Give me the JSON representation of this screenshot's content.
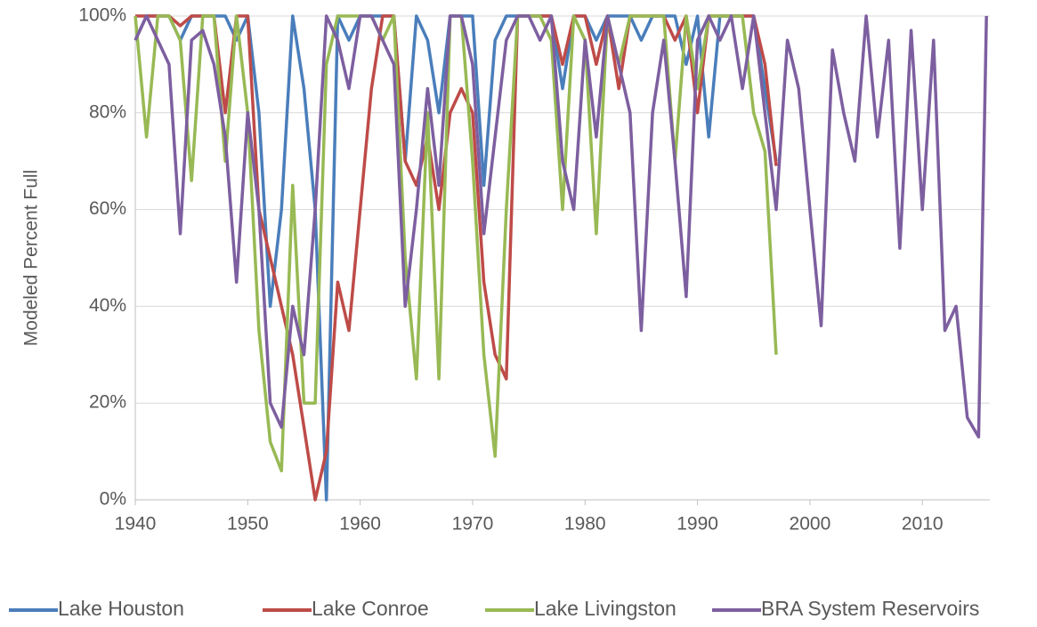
{
  "chart_data": {
    "type": "line",
    "y_label": "Modeled Percent Full",
    "x": [
      1940,
      1941,
      1942,
      1943,
      1944,
      1945,
      1946,
      1947,
      1948,
      1949,
      1950,
      1951,
      1952,
      1953,
      1954,
      1955,
      1956,
      1957,
      1958,
      1959,
      1960,
      1961,
      1962,
      1963,
      1964,
      1965,
      1966,
      1967,
      1968,
      1969,
      1970,
      1971,
      1972,
      1973,
      1974,
      1975,
      1976,
      1977,
      1978,
      1979,
      1980,
      1981,
      1982,
      1983,
      1984,
      1985,
      1986,
      1987,
      1988,
      1989,
      1990,
      1991,
      1992,
      1993,
      1994,
      1995,
      1996,
      1997,
      1998,
      1999,
      2000,
      2001,
      2002,
      2003,
      2004,
      2005,
      2006,
      2007,
      2008,
      2009,
      2010,
      2011,
      2012,
      2013,
      2014,
      2015,
      2015.7
    ],
    "series": [
      {
        "name": "Lake Houston",
        "color": "#4a7ebb",
        "values": [
          95,
          100,
          100,
          100,
          95,
          100,
          100,
          100,
          100,
          95,
          100,
          80,
          40,
          60,
          100,
          85,
          60,
          0,
          100,
          95,
          100,
          100,
          100,
          100,
          70,
          100,
          95,
          80,
          100,
          100,
          100,
          65,
          95,
          100,
          100,
          100,
          100,
          100,
          85,
          100,
          100,
          95,
          100,
          100,
          100,
          95,
          100,
          100,
          100,
          90,
          100,
          75,
          100,
          100,
          100,
          100,
          85,
          70,
          null,
          null,
          null,
          null,
          null,
          null,
          null,
          null,
          null,
          null,
          null,
          null,
          null,
          null,
          null,
          null,
          null,
          null,
          null
        ]
      },
      {
        "name": "Lake Conroe",
        "color": "#be4b48",
        "values": [
          100,
          100,
          100,
          100,
          98,
          100,
          100,
          100,
          80,
          100,
          100,
          60,
          50,
          40,
          30,
          15,
          0,
          10,
          45,
          35,
          60,
          85,
          100,
          100,
          70,
          65,
          75,
          60,
          80,
          85,
          80,
          45,
          30,
          25,
          100,
          100,
          100,
          100,
          90,
          100,
          100,
          90,
          100,
          85,
          100,
          100,
          100,
          100,
          95,
          100,
          80,
          100,
          100,
          100,
          100,
          100,
          90,
          69,
          null,
          null,
          null,
          null,
          null,
          null,
          null,
          null,
          null,
          null,
          null,
          null,
          null,
          null,
          null,
          null,
          null,
          null,
          null
        ]
      },
      {
        "name": "Lake Livingston",
        "color": "#98b954",
        "values": [
          100,
          75,
          100,
          100,
          95,
          66,
          100,
          100,
          70,
          100,
          80,
          35,
          12,
          6,
          65,
          20,
          20,
          90,
          100,
          100,
          100,
          100,
          95,
          100,
          50,
          25,
          80,
          25,
          100,
          100,
          70,
          30,
          9,
          60,
          100,
          100,
          100,
          95,
          60,
          100,
          95,
          55,
          100,
          90,
          100,
          100,
          100,
          100,
          70,
          100,
          85,
          100,
          100,
          100,
          100,
          80,
          72,
          30,
          null,
          null,
          null,
          null,
          null,
          null,
          null,
          null,
          null,
          null,
          null,
          null,
          null,
          null,
          null,
          null,
          null,
          null,
          null
        ]
      },
      {
        "name": "BRA System Reservoirs",
        "color": "#7d5fa0",
        "values": [
          95,
          100,
          95,
          90,
          55,
          95,
          97,
          90,
          75,
          45,
          80,
          60,
          20,
          15,
          40,
          30,
          60,
          100,
          95,
          85,
          100,
          100,
          95,
          90,
          40,
          60,
          85,
          65,
          100,
          100,
          90,
          55,
          75,
          95,
          100,
          100,
          95,
          100,
          70,
          60,
          95,
          75,
          100,
          90,
          80,
          35,
          80,
          95,
          70,
          42,
          95,
          100,
          95,
          100,
          85,
          100,
          80,
          60,
          95,
          85,
          60,
          36,
          93,
          80,
          70,
          100,
          75,
          95,
          52,
          97,
          60,
          95,
          35,
          40,
          17,
          13,
          100
        ]
      }
    ],
    "xlim": [
      1940,
      2016
    ],
    "xticks": [
      1940,
      1950,
      1960,
      1970,
      1980,
      1990,
      2000,
      2010
    ],
    "ylim": [
      0,
      100
    ],
    "yticks": [
      {
        "value": 0,
        "label": "0%"
      },
      {
        "value": 20,
        "label": "20%"
      },
      {
        "value": 40,
        "label": "40%"
      },
      {
        "value": 60,
        "label": "60%"
      },
      {
        "value": 80,
        "label": "80%"
      },
      {
        "value": 100,
        "label": "100%"
      }
    ],
    "grid": true,
    "legend": "bottom"
  }
}
